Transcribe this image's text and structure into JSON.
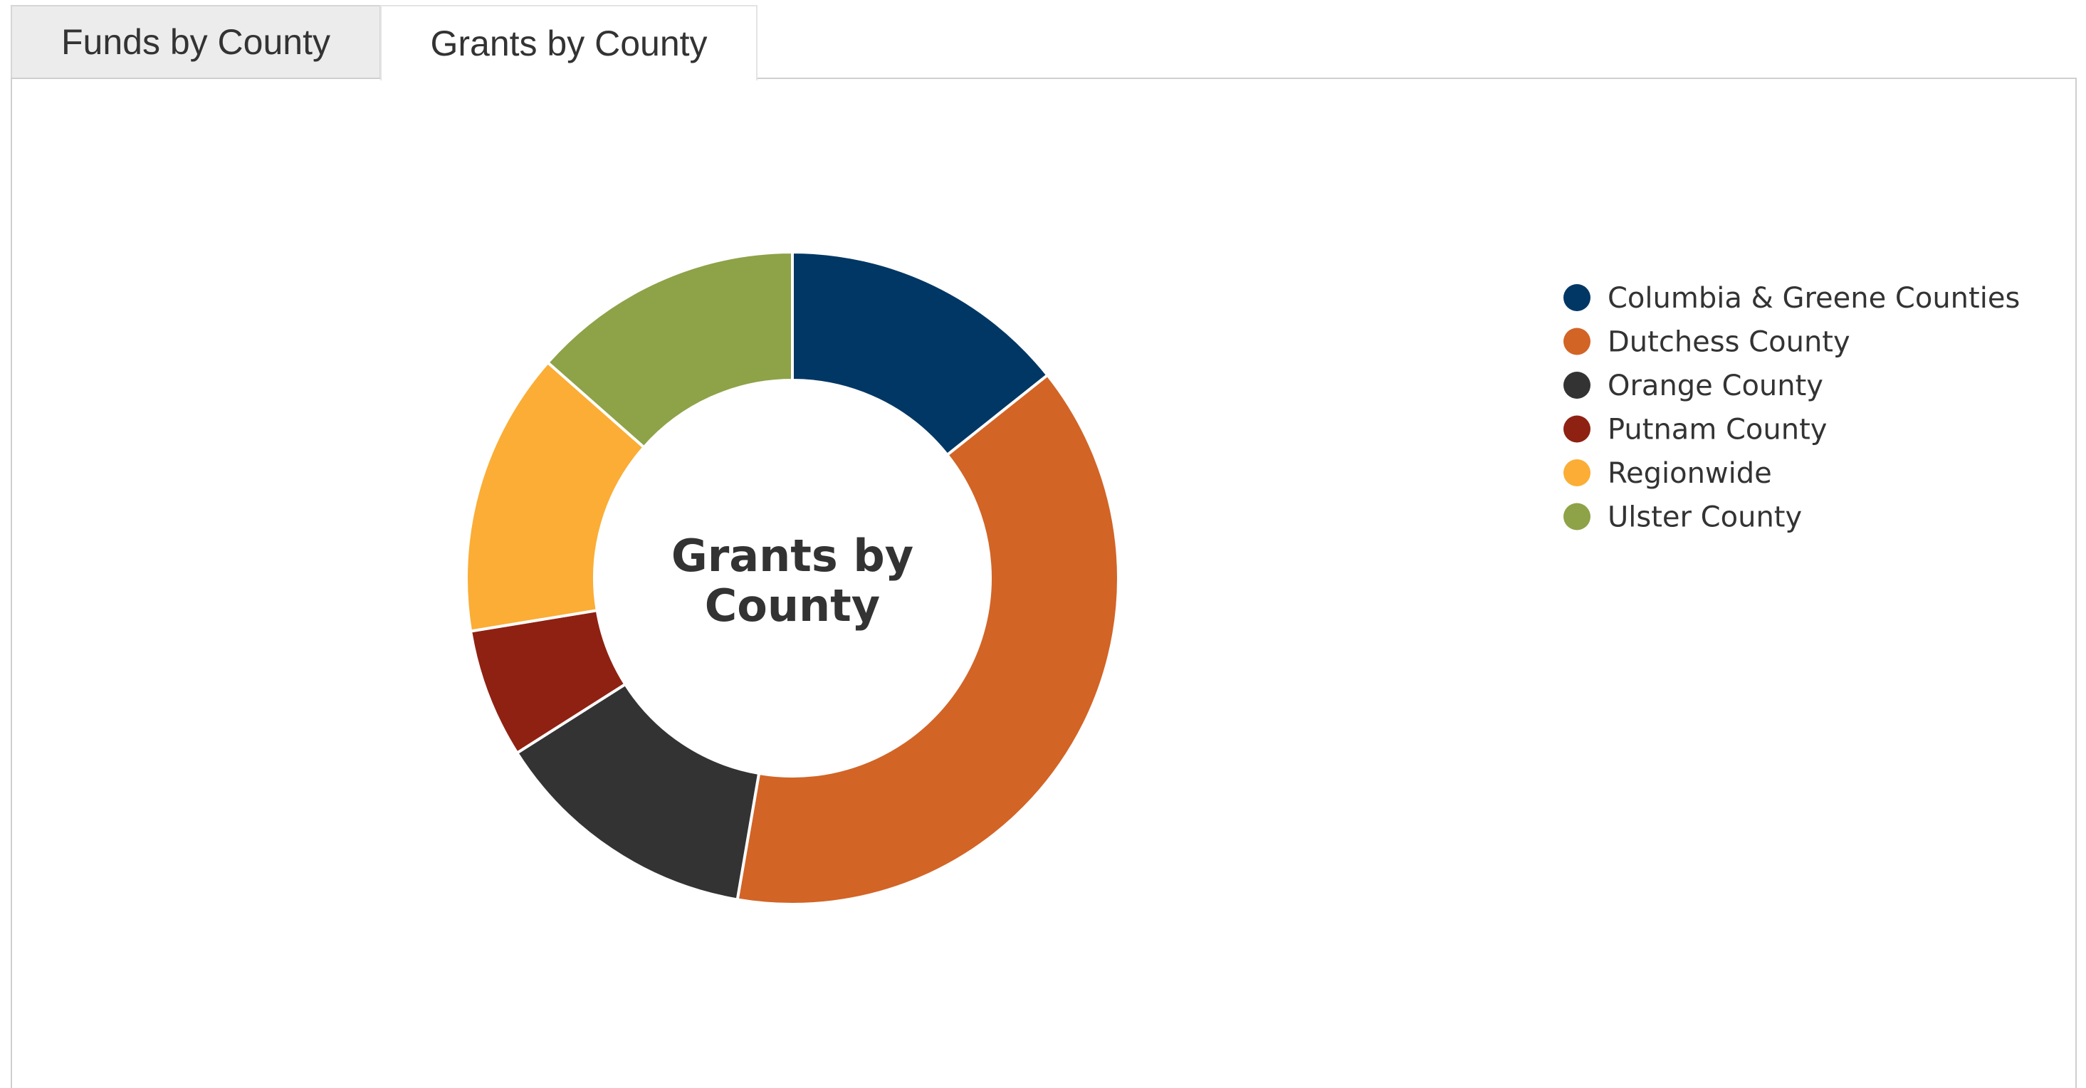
{
  "tabs": [
    {
      "label": "Funds by County",
      "active": false
    },
    {
      "label": "Grants by County",
      "active": true
    }
  ],
  "chart_data": {
    "type": "pie",
    "variant": "donut",
    "center_title_lines": [
      "Grants by",
      "County"
    ],
    "legend_position": "right",
    "categories": [
      "Columbia & Greene Counties",
      "Dutchess County",
      "Orange County",
      "Putnam County",
      "Regionwide",
      "Ulster County"
    ],
    "values": [
      14.3,
      38.4,
      13.3,
      6.4,
      14.1,
      13.5
    ],
    "colors": [
      "#003764",
      "#d26426",
      "#333333",
      "#8f2112",
      "#fbad35",
      "#8ea248"
    ]
  }
}
